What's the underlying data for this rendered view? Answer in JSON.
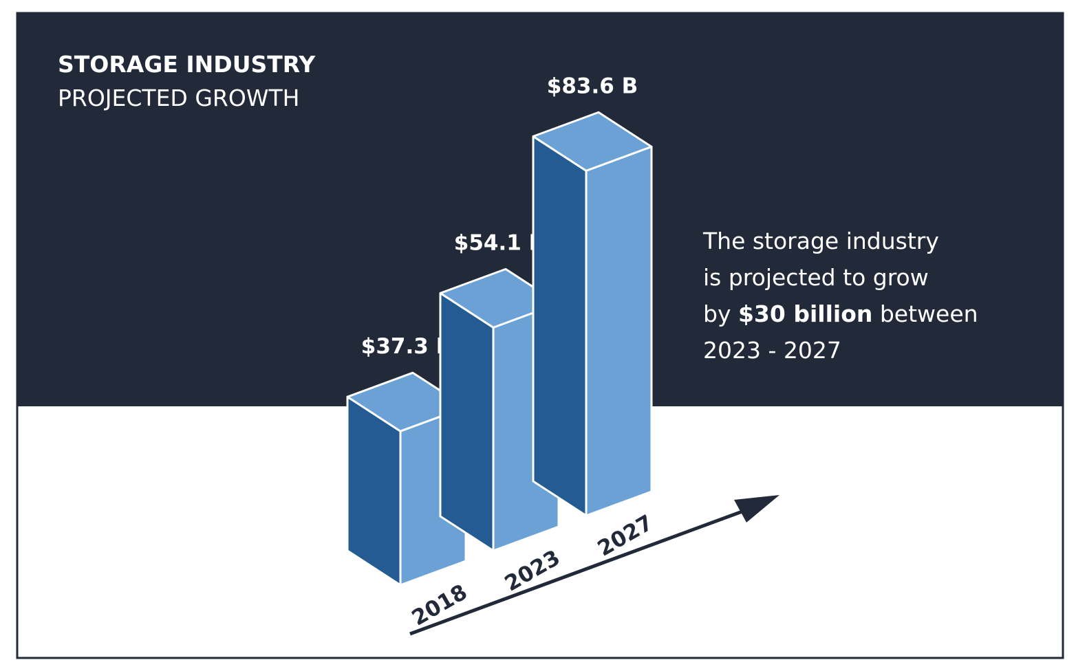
{
  "colors": {
    "background_dark": "#222938",
    "background_light": "#ffffff",
    "bar_front": "#6ba1d4",
    "bar_side": "#235b92",
    "bar_top": "#6ba1d4",
    "bar_edge": "#ffffff",
    "axis_arrow": "#222938"
  },
  "header": {
    "title": "STORAGE INDUSTRY",
    "subtitle": "PROJECTED GROWTH"
  },
  "description": {
    "line1": "The storage industry",
    "line2": "is projected to grow",
    "line3_pre": "by ",
    "line3_strong": "$30 billion",
    "line3_post": " between",
    "line4": "2023 - 2027"
  },
  "chart_data": {
    "type": "bar",
    "style": "3d-isometric",
    "categories": [
      "2018",
      "2023",
      "2027"
    ],
    "values": [
      37.3,
      54.1,
      83.6
    ],
    "value_labels": [
      "$37.3 B",
      "$54.1 B",
      "$83.6 B"
    ],
    "unit": "billion USD",
    "title": "STORAGE INDUSTRY",
    "subtitle": "PROJECTED GROWTH",
    "xlabel": "",
    "ylabel": "",
    "grid": false,
    "legend": "none"
  }
}
